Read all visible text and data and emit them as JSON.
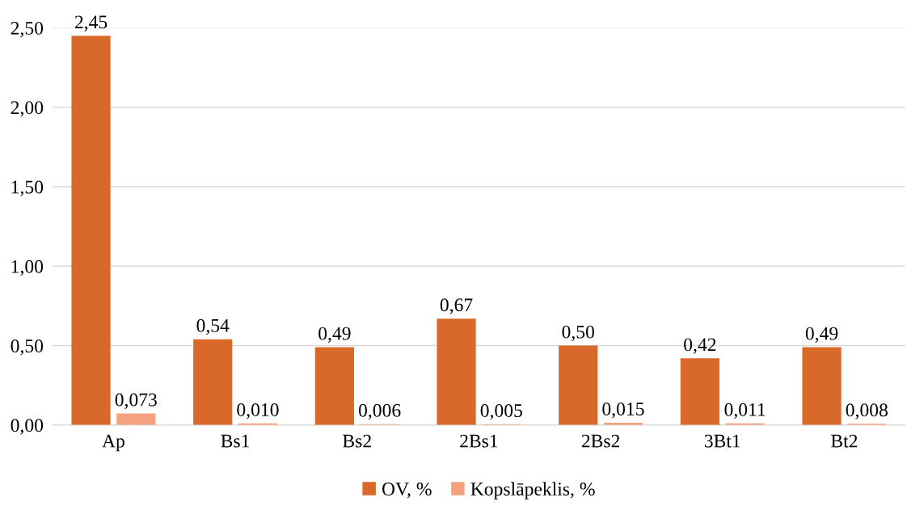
{
  "chart_data": {
    "type": "bar",
    "categories": [
      "Ap",
      "Bs1",
      "Bs2",
      "2Bs1",
      "2Bs2",
      "3Bt1",
      "Bt2"
    ],
    "series": [
      {
        "name": "OV, %",
        "color": "#d9692b",
        "values": [
          2.45,
          0.54,
          0.49,
          0.67,
          0.5,
          0.42,
          0.49
        ],
        "value_labels": [
          "2,45",
          "0,54",
          "0,49",
          "0,67",
          "0,50",
          "0,42",
          "0,49"
        ]
      },
      {
        "name": "Kopslāpeklis, %",
        "color": "#f4a27e",
        "values": [
          0.073,
          0.01,
          0.006,
          0.005,
          0.015,
          0.011,
          0.008
        ],
        "value_labels": [
          "0,073",
          "0,010",
          "0,006",
          "0,005",
          "0,015",
          "0,011",
          "0,008"
        ]
      }
    ],
    "ylim": [
      0,
      2.5
    ],
    "yticks": [
      {
        "value": 0,
        "label": "0,00"
      },
      {
        "value": 0.5,
        "label": "0,50"
      },
      {
        "value": 1.0,
        "label": "1,00"
      },
      {
        "value": 1.5,
        "label": "1,50"
      },
      {
        "value": 2.0,
        "label": "2,00"
      },
      {
        "value": 2.5,
        "label": "2,50"
      }
    ],
    "grid": "y",
    "legend": "bottom"
  }
}
